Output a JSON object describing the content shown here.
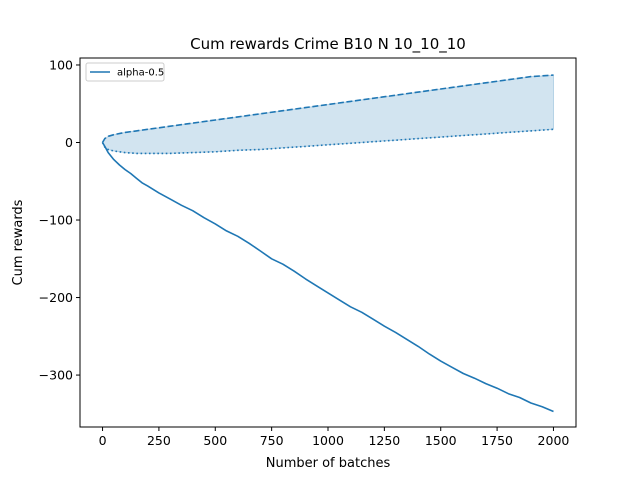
{
  "chart_data": {
    "type": "line",
    "title": "Cum rewards Crime B10 N 10_10_10",
    "xlabel": "Number of batches",
    "ylabel": "Cum rewards",
    "xlim": [
      -100,
      2100
    ],
    "ylim": [
      -367,
      109
    ],
    "xticks": [
      0,
      250,
      500,
      750,
      1000,
      1250,
      1500,
      1750,
      2000
    ],
    "yticks": [
      100,
      0,
      -100,
      -200,
      -300
    ],
    "ytick_labels": [
      "100",
      "0",
      "−100",
      "−200",
      "−300"
    ],
    "grid": false,
    "legend": {
      "placement": "top-left",
      "entries": [
        "alpha-0.5"
      ]
    },
    "colors": {
      "series": "#1f77b4",
      "band": "#1f77b4"
    },
    "series": [
      {
        "name": "alpha-0.5",
        "style": "solid",
        "x": [
          0,
          10,
          25,
          50,
          75,
          100,
          125,
          150,
          175,
          200,
          250,
          300,
          350,
          400,
          450,
          500,
          550,
          600,
          650,
          700,
          750,
          800,
          850,
          900,
          950,
          1000,
          1050,
          1100,
          1150,
          1200,
          1250,
          1300,
          1350,
          1400,
          1450,
          1500,
          1550,
          1600,
          1650,
          1700,
          1750,
          1800,
          1850,
          1900,
          1950,
          2000
        ],
        "y": [
          0,
          -5,
          -13,
          -22,
          -29,
          -35,
          -40,
          -46,
          -52,
          -56,
          -65,
          -73,
          -81,
          -88,
          -97,
          -105,
          -114,
          -121,
          -130,
          -140,
          -150,
          -157,
          -166,
          -176,
          -185,
          -194,
          -203,
          -212,
          -219,
          -228,
          -237,
          -245,
          -254,
          -263,
          -273,
          -282,
          -290,
          -298,
          -304,
          -311,
          -317,
          -324,
          -329,
          -336,
          -341,
          -347
        ]
      },
      {
        "name": "",
        "style": "dashed",
        "x": [
          0,
          10,
          25,
          50,
          100,
          150,
          200,
          250,
          300,
          400,
          500,
          600,
          700,
          800,
          900,
          1000,
          1100,
          1200,
          1300,
          1400,
          1500,
          1600,
          1700,
          1800,
          1900,
          2000
        ],
        "y": [
          0,
          5,
          8,
          10,
          13,
          15,
          17,
          19,
          21,
          25,
          29,
          33,
          37,
          41,
          45,
          49,
          53,
          57,
          61,
          65,
          69,
          73,
          77,
          81,
          85,
          87
        ]
      },
      {
        "name": "",
        "style": "dotted",
        "x": [
          0,
          10,
          25,
          50,
          100,
          150,
          200,
          250,
          300,
          400,
          500,
          600,
          700,
          800,
          900,
          1000,
          1100,
          1200,
          1300,
          1400,
          1500,
          1600,
          1700,
          1800,
          1900,
          2000
        ],
        "y": [
          0,
          -6,
          -9,
          -11,
          -13,
          -14,
          -14,
          -14,
          -14,
          -13,
          -12,
          -10,
          -9,
          -7,
          -5,
          -3,
          -1,
          1,
          3,
          5,
          7,
          9,
          11,
          13,
          15,
          17
        ]
      }
    ],
    "fill_between": {
      "upper_series": 1,
      "lower_series": 2,
      "opacity": 0.2
    }
  }
}
